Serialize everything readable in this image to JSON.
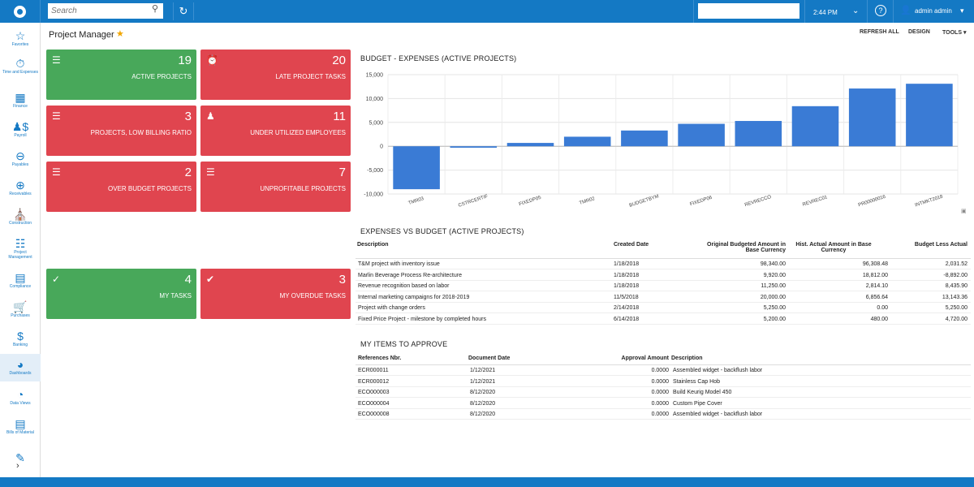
{
  "topbar": {
    "search_placeholder": "Search",
    "time": "2:44 PM",
    "user_name": "admin admin"
  },
  "sidebar": {
    "items": [
      {
        "label": "Favorites",
        "icon": "star-icon"
      },
      {
        "label": "Time and Expenses",
        "icon": "stopwatch-icon"
      },
      {
        "label": "Finance",
        "icon": "calculator-icon"
      },
      {
        "label": "Payroll",
        "icon": "people-dollar-icon"
      },
      {
        "label": "Payables",
        "icon": "minus-circle-icon"
      },
      {
        "label": "Receivables",
        "icon": "plus-circle-icon"
      },
      {
        "label": "Construction",
        "icon": "construction-icon"
      },
      {
        "label": "Project Management",
        "icon": "org-chart-icon"
      },
      {
        "label": "Compliance",
        "icon": "checklist-icon"
      },
      {
        "label": "Purchases",
        "icon": "cart-icon"
      },
      {
        "label": "Banking",
        "icon": "dollar-icon"
      },
      {
        "label": "Dashboards",
        "icon": "gauge-icon"
      },
      {
        "label": "Data Views",
        "icon": "pie-icon"
      },
      {
        "label": "Bills of Material",
        "icon": "document-icon"
      }
    ]
  },
  "page": {
    "title": "Project Manager",
    "tools": {
      "refresh": "REFRESH ALL",
      "design": "DESIGN",
      "tools": "TOOLS"
    }
  },
  "tiles": [
    {
      "value": "19",
      "label": "ACTIVE PROJECTS",
      "color": "#48a85a",
      "icon": "project-icon"
    },
    {
      "value": "20",
      "label": "LATE PROJECT TASKS",
      "color": "#e0454f",
      "icon": "alarm-icon"
    },
    {
      "value": "3",
      "label": "PROJECTS, LOW BILLING RATIO",
      "color": "#e0454f",
      "icon": "project-icon"
    },
    {
      "value": "11",
      "label": "UNDER UTILIZED EMPLOYEES",
      "color": "#e0454f",
      "icon": "user-icon"
    },
    {
      "value": "2",
      "label": "OVER BUDGET PROJECTS",
      "color": "#e0454f",
      "icon": "project-icon"
    },
    {
      "value": "7",
      "label": "UNPROFITABLE PROJECTS",
      "color": "#e0454f",
      "icon": "project-icon"
    },
    {
      "value": "4",
      "label": "MY TASKS",
      "color": "#48a85a",
      "icon": "check-icon"
    },
    {
      "value": "3",
      "label": "MY OVERDUE TASKS",
      "color": "#e0454f",
      "icon": "check-circle-icon"
    }
  ],
  "chart_title": "BUDGET - EXPENSES (ACTIVE PROJECTS)",
  "chart_data": {
    "type": "bar",
    "title": "BUDGET - EXPENSES (ACTIVE PROJECTS)",
    "categories": [
      "TMR03",
      "CSTRCERTIF",
      "FIXEDP05",
      "TMR02",
      "BUDGETBYM",
      "FIXEDP06",
      "REVRECCO",
      "REVREC01",
      "PR00000016",
      "INTMKT2018"
    ],
    "values": [
      -9000,
      -300,
      700,
      2000,
      3300,
      4700,
      5300,
      8400,
      12100,
      13100
    ],
    "ylim": [
      -10000,
      15000
    ],
    "yticks": [
      "15,000",
      "10,000",
      "5,000",
      "0",
      "-5,000",
      "-10,000"
    ],
    "grid": true,
    "bar_color": "#3a7bd5"
  },
  "expenses": {
    "title": "EXPENSES VS BUDGET (ACTIVE PROJECTS)",
    "headers": {
      "description": "Description",
      "created": "Created Date",
      "original1": "Original Budgeted Amount in",
      "original2": "Base Currency",
      "hist1": "Hist. Actual Amount in Base",
      "hist2": "Currency",
      "less": "Budget Less Actual"
    },
    "rows": [
      {
        "description": "T&M project with inventory issue",
        "created": "1/18/2018",
        "original": "98,340.00",
        "hist": "96,308.48",
        "less": "2,031.52"
      },
      {
        "description": "Marlin Beverage Process Re-architecture",
        "created": "1/18/2018",
        "original": "9,920.00",
        "hist": "18,812.00",
        "less": "-8,892.00"
      },
      {
        "description": "Revenue recognition based on labor",
        "created": "1/18/2018",
        "original": "11,250.00",
        "hist": "2,814.10",
        "less": "8,435.90"
      },
      {
        "description": "Internal marketing campaigns for 2018-2019",
        "created": "11/5/2018",
        "original": "20,000.00",
        "hist": "6,856.64",
        "less": "13,143.36"
      },
      {
        "description": "Project with change orders",
        "created": "2/14/2018",
        "original": "5,250.00",
        "hist": "0.00",
        "less": "5,250.00"
      },
      {
        "description": "Fixed Price Project - milestone by completed hours",
        "created": "6/14/2018",
        "original": "5,200.00",
        "hist": "480.00",
        "less": "4,720.00"
      }
    ]
  },
  "approve": {
    "title": "MY ITEMS TO APPROVE",
    "headers": {
      "ref": "References Nbr.",
      "date": "Document Date",
      "amount": "Approval Amount",
      "description": "Description"
    },
    "rows": [
      {
        "ref": "ECR000011",
        "date": "1/12/2021",
        "amount": "0.0000",
        "description": "Assembled widget - backflush labor"
      },
      {
        "ref": "ECR000012",
        "date": "1/12/2021",
        "amount": "0.0000",
        "description": "Stainless Cap Hob"
      },
      {
        "ref": "ECO000003",
        "date": "8/12/2020",
        "amount": "0.0000",
        "description": "Build Keurig Model 450"
      },
      {
        "ref": "ECO000004",
        "date": "8/12/2020",
        "amount": "0.0000",
        "description": "Custom Pipe Cover"
      },
      {
        "ref": "ECO000008",
        "date": "8/12/2020",
        "amount": "0.0000",
        "description": "Assembled widget - backflush labor"
      }
    ]
  }
}
